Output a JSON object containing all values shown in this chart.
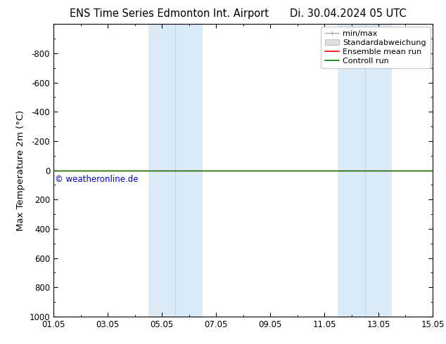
{
  "title_left": "ENS Time Series Edmonton Int. Airport",
  "title_right": "Di. 30.04.2024 05 UTC",
  "ylabel": "Max Temperature 2m (°C)",
  "xlabel": "",
  "ymin": -1000,
  "ymax": 1000,
  "yticks": [
    -800,
    -600,
    -400,
    -200,
    0,
    200,
    400,
    600,
    800,
    1000
  ],
  "xtick_labels": [
    "01.05",
    "03.05",
    "05.05",
    "07.05",
    "09.05",
    "11.05",
    "13.05",
    "15.05"
  ],
  "xtick_positions": [
    0,
    2,
    4,
    6,
    8,
    10,
    12,
    14
  ],
  "x_range": [
    0,
    14
  ],
  "shaded_bands": [
    {
      "x_start": 3.5,
      "x_end": 4.5,
      "color": "#daeaf7"
    },
    {
      "x_start": 4.5,
      "x_end": 5.5,
      "color": "#daeaf7"
    },
    {
      "x_start": 10.5,
      "x_end": 11.5,
      "color": "#daeaf7"
    },
    {
      "x_start": 11.5,
      "x_end": 12.5,
      "color": "#daeaf7"
    }
  ],
  "band_dividers": [
    4.5,
    11.5
  ],
  "green_line_y": 0,
  "green_line_color": "#008000",
  "red_line_color": "#ff0000",
  "copyright_text": "© weatheronline.de",
  "copyright_color": "#0000cc",
  "bg_color": "#ffffff",
  "axis_bg_color": "#ffffff",
  "title_fontsize": 10.5,
  "tick_fontsize": 8.5,
  "ylabel_fontsize": 9.5,
  "legend_fontsize": 8
}
